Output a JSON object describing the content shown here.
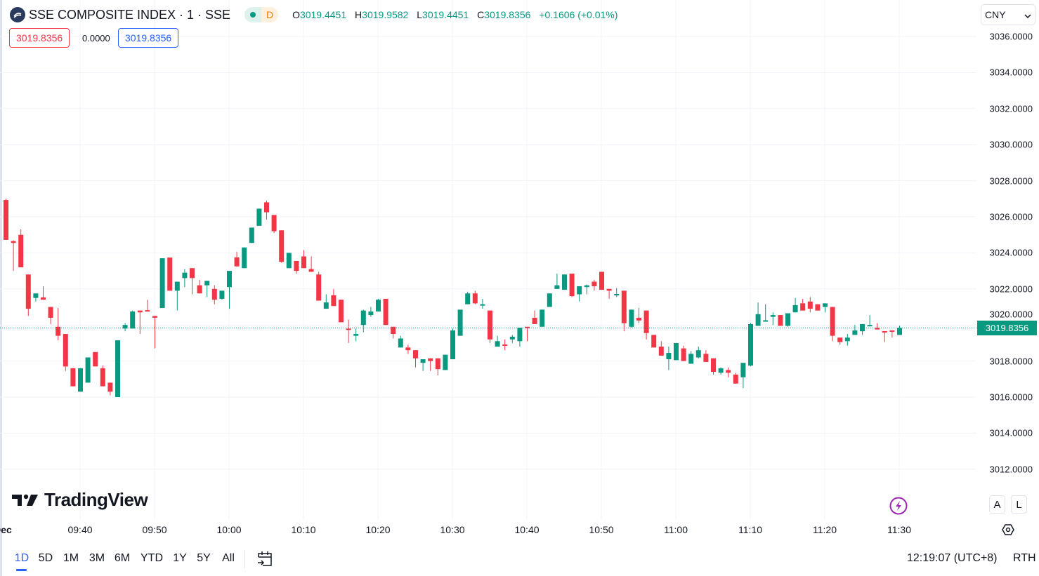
{
  "header": {
    "title": "SSE COMPOSITE INDEX · 1 · SSE",
    "badge_letter": "D",
    "ohlc": {
      "o_label": "O",
      "o": "3019.4451",
      "h_label": "H",
      "h": "3019.9582",
      "l_label": "L",
      "l": "3019.4451",
      "c_label": "C",
      "c": "3019.8356",
      "change": "+0.1606 (+0.01%)"
    },
    "sell_price": "3019.8356",
    "spread": "0.0000",
    "buy_price": "3019.8356"
  },
  "currency": "CNY",
  "last_price_tag": "3019.8356",
  "watermark": "TradingView",
  "scale_buttons": {
    "auto": "A",
    "log": "L"
  },
  "bottom": {
    "ranges": [
      "1D",
      "5D",
      "1M",
      "3M",
      "6M",
      "YTD",
      "1Y",
      "5Y",
      "All"
    ],
    "active_range": "1D",
    "clock": "12:19:07 (UTC+8)",
    "session": "RTH"
  },
  "colors": {
    "up": "#089981",
    "down": "#f23645",
    "accent": "#2962ff",
    "grid": "#f0f3fa"
  },
  "chart_data": {
    "type": "candlestick",
    "title": "SSE COMPOSITE INDEX · 1 · SSE",
    "interval_minutes": 1,
    "start_time": "09:30",
    "ylim": [
      3010.6,
      3037
    ],
    "y_ticks": [
      "3036.0000",
      "3034.0000",
      "3032.0000",
      "3030.0000",
      "3028.0000",
      "3026.0000",
      "3024.0000",
      "3022.0000",
      "3020.0000",
      "3018.0000",
      "3016.0000",
      "3014.0000",
      "3012.0000"
    ],
    "y_tick_values": [
      3036,
      3034,
      3032,
      3030,
      3028,
      3026,
      3024,
      3022,
      3020,
      3018,
      3016,
      3014,
      3012
    ],
    "x_ticks": [
      {
        "label": "Dec",
        "minute": 0
      },
      {
        "label": "09:40",
        "minute": 10
      },
      {
        "label": "09:50",
        "minute": 20
      },
      {
        "label": "10:00",
        "minute": 30
      },
      {
        "label": "10:10",
        "minute": 40
      },
      {
        "label": "10:20",
        "minute": 50
      },
      {
        "label": "10:30",
        "minute": 60
      },
      {
        "label": "10:40",
        "minute": 70
      },
      {
        "label": "10:50",
        "minute": 80
      },
      {
        "label": "11:00",
        "minute": 90
      },
      {
        "label": "11:10",
        "minute": 100
      },
      {
        "label": "11:20",
        "minute": 110
      },
      {
        "label": "11:30",
        "minute": 120
      }
    ],
    "last_price": 3019.8356,
    "ohlc_fields": [
      "open",
      "high",
      "low",
      "close"
    ],
    "candles": [
      [
        3026.93,
        3027.0,
        3024.72,
        3024.72
      ],
      [
        3024.65,
        3024.7,
        3023.0,
        3024.55
      ],
      [
        3025.0,
        3025.3,
        3023.2,
        3023.2
      ],
      [
        3022.8,
        3022.8,
        3020.5,
        3020.9
      ],
      [
        3021.5,
        3021.75,
        3021.3,
        3021.75
      ],
      [
        3021.53,
        3022.15,
        3021.4,
        3021.4
      ],
      [
        3021.0,
        3021.0,
        3020.05,
        3020.4
      ],
      [
        3019.9,
        3020.95,
        3019.15,
        3019.4
      ],
      [
        3019.5,
        3019.5,
        3017.45,
        3017.7
      ],
      [
        3017.6,
        3017.6,
        3016.6,
        3016.6
      ],
      [
        3016.3,
        3017.6,
        3016.3,
        3017.6
      ],
      [
        3016.8,
        3018.2,
        3016.8,
        3018.2
      ],
      [
        3018.5,
        3018.5,
        3017.7,
        3017.7
      ],
      [
        3017.6,
        3017.75,
        3016.6,
        3016.6
      ],
      [
        3016.8,
        3016.8,
        3016.1,
        3016.3
      ],
      [
        3016.0,
        3019.15,
        3016.0,
        3019.15
      ],
      [
        3019.8,
        3020.1,
        3019.65,
        3020.0
      ],
      [
        3019.8,
        3020.8,
        3019.8,
        3020.75
      ],
      [
        3020.8,
        3020.8,
        3019.5,
        3020.7
      ],
      [
        3020.82,
        3021.4,
        3020.8,
        3020.8
      ],
      [
        3020.5,
        3020.5,
        3018.7,
        3020.4
      ],
      [
        3020.94,
        3023.7,
        3020.94,
        3023.7
      ],
      [
        3023.74,
        3023.74,
        3021.9,
        3021.9
      ],
      [
        3021.9,
        3022.4,
        3020.8,
        3022.4
      ],
      [
        3022.6,
        3023.1,
        3022.1,
        3022.9
      ],
      [
        3023.15,
        3023.15,
        3021.7,
        3022.6
      ],
      [
        3022.2,
        3022.5,
        3021.75,
        3021.75
      ],
      [
        3022.2,
        3022.45,
        3021.55,
        3022.45
      ],
      [
        3022.0,
        3022.2,
        3021.15,
        3021.4
      ],
      [
        3021.45,
        3021.9,
        3021.4,
        3021.9
      ],
      [
        3022.1,
        3023.0,
        3020.9,
        3023.0
      ],
      [
        3023.75,
        3024.05,
        3023.25,
        3023.25
      ],
      [
        3023.15,
        3024.3,
        3023.15,
        3024.3
      ],
      [
        3024.55,
        3025.4,
        3024.55,
        3025.4
      ],
      [
        3025.5,
        3026.45,
        3025.5,
        3026.45
      ],
      [
        3026.8,
        3026.9,
        3025.85,
        3026.25
      ],
      [
        3026.1,
        3026.1,
        3025.1,
        3025.2
      ],
      [
        3025.25,
        3025.25,
        3023.45,
        3023.5
      ],
      [
        3023.15,
        3024.0,
        3023.15,
        3024.0
      ],
      [
        3023.55,
        3023.55,
        3022.85,
        3023.0
      ],
      [
        3023.8,
        3024.15,
        3023.15,
        3023.15
      ],
      [
        3023.1,
        3023.8,
        3022.95,
        3022.95
      ],
      [
        3022.8,
        3022.95,
        3021.35,
        3021.35
      ],
      [
        3020.9,
        3021.7,
        3020.9,
        3021.25
      ],
      [
        3021.65,
        3022.0,
        3021.05,
        3021.05
      ],
      [
        3021.4,
        3021.4,
        3020.15,
        3020.15
      ],
      [
        3019.8,
        3020.3,
        3019.0,
        3019.75
      ],
      [
        3019.4,
        3019.8,
        3019.1,
        3019.5
      ],
      [
        3020.0,
        3020.85,
        3019.6,
        3020.8
      ],
      [
        3020.55,
        3021.0,
        3020.45,
        3020.75
      ],
      [
        3020.75,
        3021.45,
        3020.75,
        3021.4
      ],
      [
        3021.45,
        3021.45,
        3020.0,
        3020.0
      ],
      [
        3019.9,
        3019.9,
        3019.25,
        3019.5
      ],
      [
        3018.75,
        3019.4,
        3018.75,
        3019.25
      ],
      [
        3018.75,
        3018.9,
        3018.4,
        3018.6
      ],
      [
        3018.6,
        3018.6,
        3017.65,
        3018.15
      ],
      [
        3017.9,
        3018.1,
        3017.45,
        3018.1
      ],
      [
        3018.15,
        3018.15,
        3017.45,
        3018.0
      ],
      [
        3018.15,
        3018.15,
        3017.2,
        3017.55
      ],
      [
        3017.5,
        3018.35,
        3017.5,
        3018.35
      ],
      [
        3018.1,
        3019.8,
        3018.1,
        3019.7
      ],
      [
        3019.4,
        3020.85,
        3019.4,
        3020.85
      ],
      [
        3021.15,
        3021.85,
        3021.15,
        3021.75
      ],
      [
        3021.75,
        3021.9,
        3021.15,
        3021.2
      ],
      [
        3021.1,
        3021.45,
        3020.9,
        3021.15
      ],
      [
        3020.8,
        3020.8,
        3019.0,
        3019.2
      ],
      [
        3018.8,
        3019.4,
        3018.8,
        3019.1
      ],
      [
        3018.92,
        3019.2,
        3018.6,
        3018.88
      ],
      [
        3019.2,
        3019.45,
        3019.0,
        3019.35
      ],
      [
        3019.1,
        3019.85,
        3018.8,
        3019.85
      ],
      [
        3019.9,
        3019.9,
        3019.1,
        3019.88
      ],
      [
        3020.4,
        3020.8,
        3020.05,
        3020.05
      ],
      [
        3019.9,
        3020.85,
        3019.9,
        3020.85
      ],
      [
        3021.0,
        3021.75,
        3021.0,
        3021.75
      ],
      [
        3022.0,
        3022.85,
        3022.0,
        3022.2
      ],
      [
        3021.95,
        3022.8,
        3021.95,
        3022.8
      ],
      [
        3022.85,
        3022.85,
        3021.55,
        3021.6
      ],
      [
        3021.7,
        3022.15,
        3021.3,
        3022.15
      ],
      [
        3022.1,
        3022.25,
        3021.7,
        3022.2
      ],
      [
        3022.4,
        3022.5,
        3021.9,
        3022.15
      ],
      [
        3022.95,
        3022.95,
        3021.95,
        3021.95
      ],
      [
        3022.0,
        3022.0,
        3021.45,
        3021.9
      ],
      [
        3021.7,
        3022.05,
        3021.55,
        3021.72
      ],
      [
        3021.9,
        3021.9,
        3019.65,
        3020.1
      ],
      [
        3019.9,
        3020.85,
        3019.85,
        3020.85
      ],
      [
        3020.4,
        3020.95,
        3020.1,
        3020.25
      ],
      [
        3020.8,
        3020.8,
        3019.2,
        3019.55
      ],
      [
        3019.45,
        3019.45,
        3018.75,
        3018.75
      ],
      [
        3018.8,
        3019.1,
        3018.3,
        3018.3
      ],
      [
        3018.1,
        3018.8,
        3017.5,
        3018.45
      ],
      [
        3018.05,
        3019.0,
        3018.05,
        3019.0
      ],
      [
        3018.7,
        3018.85,
        3018.0,
        3018.0
      ],
      [
        3017.85,
        3018.55,
        3017.85,
        3018.4
      ],
      [
        3018.2,
        3018.8,
        3018.15,
        3018.6
      ],
      [
        3018.4,
        3018.6,
        3017.95,
        3017.95
      ],
      [
        3018.15,
        3018.15,
        3017.25,
        3017.4
      ],
      [
        3017.35,
        3017.65,
        3017.25,
        3017.6
      ],
      [
        3017.5,
        3017.65,
        3017.1,
        3017.35
      ],
      [
        3017.25,
        3017.35,
        3016.75,
        3016.75
      ],
      [
        3017.1,
        3017.9,
        3016.5,
        3017.9
      ],
      [
        3017.75,
        3020.1,
        3017.7,
        3020.05
      ],
      [
        3019.95,
        3021.25,
        3019.95,
        3020.6
      ],
      [
        3020.24,
        3021.15,
        3020.24,
        3020.26
      ],
      [
        3020.45,
        3020.7,
        3020.0,
        3020.55
      ],
      [
        3020.55,
        3020.55,
        3019.95,
        3019.95
      ],
      [
        3019.95,
        3020.65,
        3019.9,
        3020.65
      ],
      [
        3020.7,
        3021.5,
        3020.7,
        3021.1
      ],
      [
        3021.2,
        3021.45,
        3020.8,
        3020.8
      ],
      [
        3021.3,
        3021.55,
        3020.7,
        3020.9
      ],
      [
        3021.15,
        3021.15,
        3020.8,
        3020.8
      ],
      [
        3021.0,
        3021.2,
        3020.7,
        3021.2
      ],
      [
        3021.0,
        3021.0,
        3019.1,
        3019.4
      ],
      [
        3019.3,
        3019.3,
        3018.9,
        3019.05
      ],
      [
        3019.1,
        3019.5,
        3018.85,
        3019.3
      ],
      [
        3019.45,
        3020.0,
        3019.45,
        3019.7
      ],
      [
        3019.65,
        3020.05,
        3019.45,
        3020.05
      ],
      [
        3019.98,
        3020.55,
        3019.98,
        3020.0
      ],
      [
        3019.85,
        3020.1,
        3019.75,
        3019.75
      ],
      [
        3019.66,
        3019.66,
        3019.05,
        3019.64
      ],
      [
        3019.7,
        3019.7,
        3019.3,
        3019.68
      ],
      [
        3019.4451,
        3019.9582,
        3019.4451,
        3019.8356
      ]
    ]
  }
}
